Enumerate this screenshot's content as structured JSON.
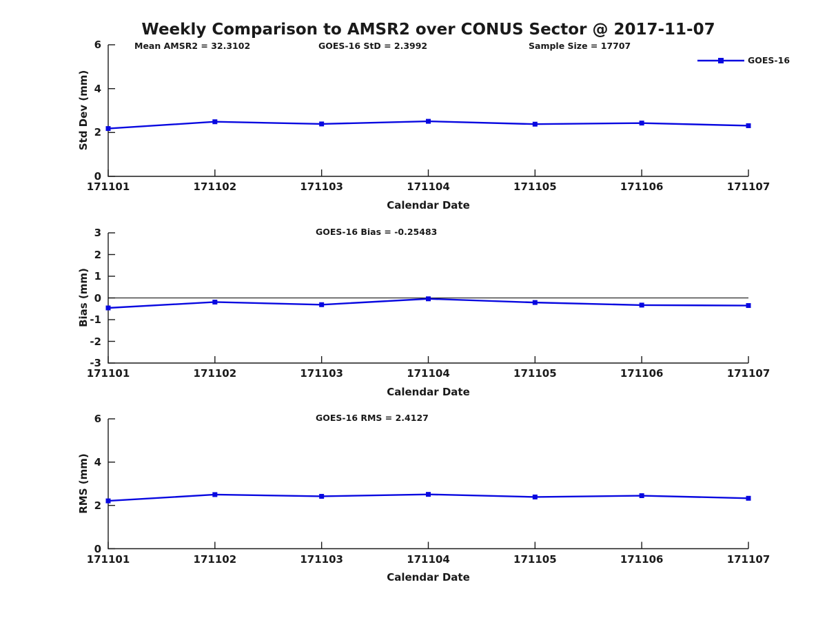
{
  "title": "Weekly Comparison to AMSR2 over CONUS Sector @ 2017-11-07",
  "legend": {
    "label": "GOES-16"
  },
  "colors": {
    "line": "#0808e0",
    "axis": "#1a1a1a",
    "text": "#1a1a1a",
    "zero_line": "#000000",
    "background": "#ffffff"
  },
  "chart_data": [
    {
      "type": "line",
      "panel": "std-dev",
      "annotations": [
        "Mean AMSR2 = 32.3102",
        "GOES-16 StD = 2.3992",
        "Sample Size = 17707"
      ],
      "categories": [
        "171101",
        "171102",
        "171103",
        "171104",
        "171105",
        "171106",
        "171107"
      ],
      "series": [
        {
          "name": "GOES-16",
          "values": [
            2.18,
            2.49,
            2.39,
            2.51,
            2.38,
            2.43,
            2.31
          ]
        }
      ],
      "xlabel": "Calendar Date",
      "ylabel": "Std Dev (mm)",
      "ylim": [
        0,
        6
      ],
      "yticks": [
        0,
        2,
        4,
        6
      ],
      "grid": false,
      "zero_line": false,
      "legend_position": "top-right"
    },
    {
      "type": "line",
      "panel": "bias",
      "title": "GOES-16 Bias  = -0.25483",
      "categories": [
        "171101",
        "171102",
        "171103",
        "171104",
        "171105",
        "171106",
        "171107"
      ],
      "series": [
        {
          "name": "GOES-16",
          "values": [
            -0.46,
            -0.19,
            -0.31,
            -0.04,
            -0.21,
            -0.33,
            -0.35
          ]
        }
      ],
      "xlabel": "Calendar Date",
      "ylabel": "Bias (mm)",
      "ylim": [
        -3,
        3
      ],
      "yticks": [
        -3,
        -2,
        -1,
        0,
        1,
        2,
        3
      ],
      "grid": false,
      "zero_line": true
    },
    {
      "type": "line",
      "panel": "rms",
      "title": "GOES-16 RMS = 2.4127",
      "categories": [
        "171101",
        "171102",
        "171103",
        "171104",
        "171105",
        "171106",
        "171107"
      ],
      "series": [
        {
          "name": "GOES-16",
          "values": [
            2.21,
            2.5,
            2.42,
            2.51,
            2.39,
            2.45,
            2.33
          ]
        }
      ],
      "xlabel": "Calendar Date",
      "ylabel": "RMS (mm)",
      "ylim": [
        0,
        6
      ],
      "yticks": [
        0,
        2,
        4,
        6
      ],
      "grid": false,
      "zero_line": false
    }
  ]
}
